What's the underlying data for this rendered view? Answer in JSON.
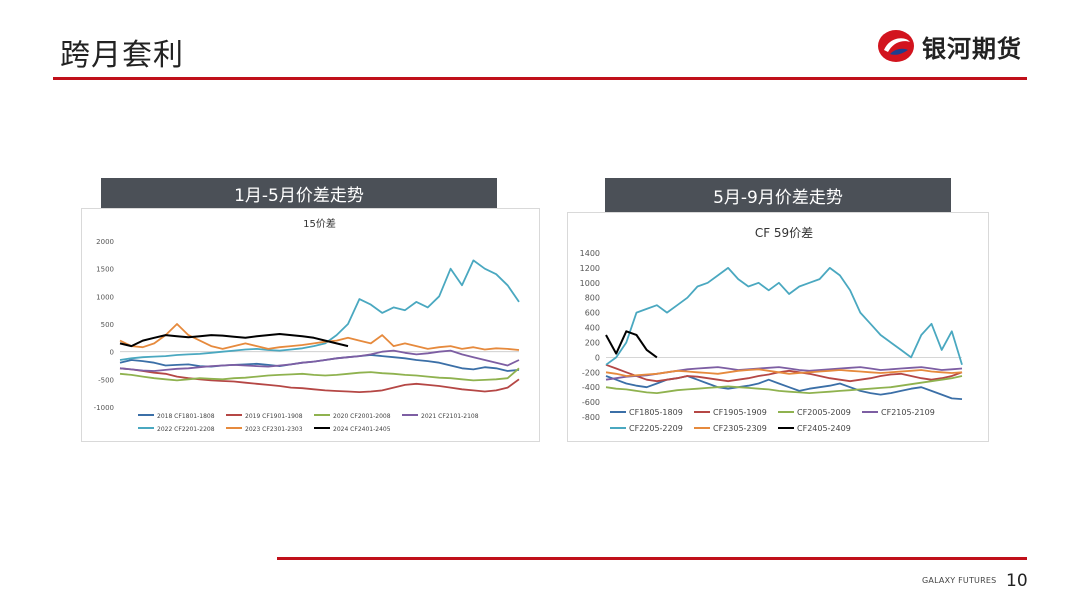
{
  "header": {
    "title": "跨月套利",
    "logo_text": "银河期货"
  },
  "footer": {
    "brand": "GALAXY FUTURES",
    "page_number": "10"
  },
  "colors": {
    "accent_red": "#c0101a",
    "header_bg": "#4b5057"
  },
  "panels": [
    {
      "header": "1月-5月价差走势"
    },
    {
      "header": "5月-9月价差走势"
    }
  ],
  "chart_data": [
    {
      "type": "line",
      "title": "15价差",
      "ylim": [
        -1000,
        2000
      ],
      "yticks": [
        "2000",
        "1500",
        "1000",
        "500",
        "0",
        "-500",
        "-1000"
      ],
      "series": [
        {
          "name": "2018 CF1801-1808",
          "color": "#3b6fa7",
          "values": [
            -200,
            -150,
            -170,
            -200,
            -250,
            -240,
            -230,
            -260,
            -270,
            -250,
            -240,
            -230,
            -220,
            -240,
            -260,
            -230,
            -200,
            -180,
            -150,
            -120,
            -100,
            -80,
            -60,
            -80,
            -100,
            -120,
            -150,
            -170,
            -200,
            -250,
            -300,
            -320,
            -280,
            -300,
            -350,
            -330
          ]
        },
        {
          "name": "2019 CF1901-1908",
          "color": "#b54745",
          "values": [
            -300,
            -320,
            -350,
            -380,
            -400,
            -450,
            -480,
            -500,
            -520,
            -530,
            -540,
            -560,
            -580,
            -600,
            -620,
            -650,
            -660,
            -680,
            -700,
            -710,
            -720,
            -730,
            -720,
            -700,
            -650,
            -600,
            -580,
            -600,
            -620,
            -650,
            -680,
            -700,
            -720,
            -700,
            -650,
            -500
          ]
        },
        {
          "name": "2020 CF2001-2008",
          "color": "#8fb24f",
          "values": [
            -400,
            -420,
            -450,
            -480,
            -500,
            -520,
            -500,
            -480,
            -490,
            -500,
            -480,
            -470,
            -450,
            -430,
            -420,
            -410,
            -400,
            -420,
            -430,
            -420,
            -400,
            -380,
            -370,
            -390,
            -400,
            -420,
            -430,
            -450,
            -470,
            -480,
            -500,
            -520,
            -510,
            -500,
            -480,
            -300
          ]
        },
        {
          "name": "2021 CF2101-2108",
          "color": "#7d5ea3",
          "values": [
            -300,
            -320,
            -340,
            -350,
            -330,
            -310,
            -300,
            -280,
            -260,
            -250,
            -240,
            -250,
            -260,
            -270,
            -250,
            -230,
            -200,
            -180,
            -150,
            -120,
            -100,
            -80,
            -50,
            0,
            20,
            -20,
            -50,
            -30,
            0,
            20,
            -50,
            -100,
            -150,
            -200,
            -250,
            -150
          ]
        },
        {
          "name": "2022 CF2201-2208",
          "color": "#4aa8c0",
          "values": [
            -150,
            -120,
            -100,
            -90,
            -80,
            -60,
            -50,
            -40,
            -20,
            0,
            20,
            40,
            50,
            30,
            20,
            40,
            60,
            100,
            150,
            300,
            500,
            950,
            850,
            700,
            800,
            750,
            900,
            800,
            1000,
            1500,
            1200,
            1650,
            1500,
            1400,
            1200,
            900
          ]
        },
        {
          "name": "2023 CF2301-2303",
          "color": "#e68a3d",
          "values": [
            200,
            100,
            80,
            150,
            300,
            500,
            300,
            200,
            100,
            50,
            100,
            150,
            100,
            50,
            80,
            100,
            120,
            150,
            180,
            200,
            250,
            200,
            150,
            300,
            100,
            150,
            100,
            50,
            80,
            100,
            50,
            80,
            40,
            60,
            50,
            30
          ]
        },
        {
          "name": "2024 CF2401-2405",
          "color": "#000000",
          "values": [
            150,
            100,
            200,
            250,
            300,
            280,
            260,
            280,
            300,
            290,
            270,
            250,
            280,
            300,
            320,
            300,
            280,
            250,
            200,
            150,
            100,
            null,
            null,
            null,
            null,
            null,
            null,
            null,
            null,
            null,
            null,
            null,
            null,
            null,
            null,
            null
          ]
        }
      ]
    },
    {
      "type": "line",
      "title": "CF 59价差",
      "ylim": [
        -800,
        1400
      ],
      "yticks": [
        "1400",
        "1200",
        "1000",
        "800",
        "600",
        "400",
        "200",
        "0",
        "-200",
        "-400",
        "-600",
        "-800"
      ],
      "series": [
        {
          "name": "CF1805-1809",
          "color": "#3b6fa7",
          "values": [
            -250,
            -300,
            -350,
            -380,
            -400,
            -350,
            -300,
            -280,
            -250,
            -300,
            -350,
            -400,
            -420,
            -400,
            -380,
            -350,
            -300,
            -350,
            -400,
            -450,
            -420,
            -400,
            -380,
            -350,
            -400,
            -450,
            -480,
            -500,
            -480,
            -450,
            -420,
            -400,
            -450,
            -500,
            -550,
            -560
          ]
        },
        {
          "name": "CF1905-1909",
          "color": "#b54745",
          "values": [
            -100,
            -150,
            -200,
            -250,
            -300,
            -320,
            -300,
            -280,
            -250,
            -260,
            -280,
            -300,
            -320,
            -300,
            -280,
            -250,
            -230,
            -200,
            -180,
            -200,
            -220,
            -250,
            -280,
            -300,
            -320,
            -300,
            -280,
            -250,
            -230,
            -220,
            -250,
            -280,
            -300,
            -280,
            -250,
            -200
          ]
        },
        {
          "name": "CF2005-2009",
          "color": "#8fb24f",
          "values": [
            -400,
            -420,
            -430,
            -450,
            -470,
            -480,
            -460,
            -440,
            -430,
            -420,
            -410,
            -400,
            -390,
            -400,
            -410,
            -420,
            -430,
            -450,
            -460,
            -470,
            -480,
            -470,
            -460,
            -450,
            -440,
            -430,
            -420,
            -410,
            -400,
            -380,
            -360,
            -340,
            -320,
            -300,
            -280,
            -250
          ]
        },
        {
          "name": "CF2105-2109",
          "color": "#7d5ea3",
          "values": [
            -300,
            -280,
            -260,
            -250,
            -240,
            -220,
            -200,
            -180,
            -160,
            -150,
            -140,
            -130,
            -150,
            -170,
            -160,
            -150,
            -140,
            -130,
            -150,
            -170,
            -180,
            -170,
            -160,
            -150,
            -140,
            -130,
            -150,
            -170,
            -160,
            -150,
            -140,
            -130,
            -150,
            -170,
            -160,
            -150
          ]
        },
        {
          "name": "CF2205-2209",
          "color": "#4aa8c0",
          "values": [
            -100,
            0,
            200,
            600,
            650,
            700,
            600,
            700,
            800,
            950,
            1000,
            1100,
            1200,
            1050,
            950,
            1000,
            900,
            1000,
            850,
            950,
            1000,
            1050,
            1200,
            1100,
            900,
            600,
            450,
            300,
            200,
            100,
            0,
            300,
            450,
            100,
            350,
            -100
          ]
        },
        {
          "name": "CF2305-2309",
          "color": "#e68a3d",
          "values": [
            -200,
            -220,
            -250,
            -240,
            -230,
            -220,
            -200,
            -180,
            -190,
            -200,
            -210,
            -220,
            -200,
            -180,
            -170,
            -160,
            -180,
            -200,
            -220,
            -210,
            -200,
            -190,
            -180,
            -170,
            -180,
            -190,
            -200,
            -210,
            -200,
            -190,
            -180,
            -170,
            -190,
            -200,
            -210,
            -200
          ]
        },
        {
          "name": "CF2405-2409",
          "color": "#000000",
          "values": [
            300,
            50,
            350,
            300,
            100,
            0,
            null,
            null,
            null,
            null,
            null,
            null,
            null,
            null,
            null,
            null,
            null,
            null,
            null,
            null,
            null,
            null,
            null,
            null,
            null,
            null,
            null,
            null,
            null,
            null,
            null,
            null,
            null,
            null,
            null,
            null
          ]
        }
      ]
    }
  ]
}
